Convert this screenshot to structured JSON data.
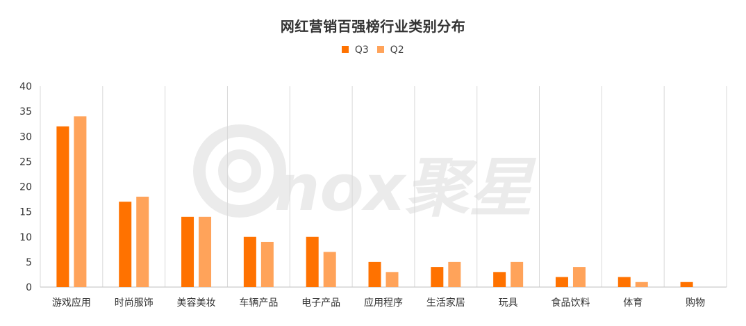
{
  "chart_data": {
    "type": "bar",
    "title": "网红营销百强榜行业类别分布",
    "categories": [
      "游戏应用",
      "时尚服饰",
      "美容美妆",
      "车辆产品",
      "电子产品",
      "应用程序",
      "生活家居",
      "玩具",
      "食品饮料",
      "体育",
      "购物"
    ],
    "series": [
      {
        "name": "Q3",
        "color": "#FF7200",
        "values": [
          32,
          17,
          14,
          10,
          10,
          5,
          4,
          3,
          2,
          2,
          1
        ]
      },
      {
        "name": "Q2",
        "color": "#FFA35A",
        "values": [
          34,
          18,
          14,
          9,
          7,
          3,
          5,
          5,
          4,
          1,
          0
        ]
      }
    ],
    "ylim": [
      0,
      40
    ],
    "yticks": [
      0,
      5,
      10,
      15,
      20,
      25,
      30,
      35,
      40
    ],
    "xlabel": "",
    "ylabel": "",
    "grid": "vertical-category-separators",
    "legend_position": "top"
  },
  "watermark": {
    "text": "nox聚星"
  },
  "colors": {
    "gridline": "#D9D9D9",
    "axis": "#BFBFBF",
    "watermark": "#EBEBEB"
  }
}
